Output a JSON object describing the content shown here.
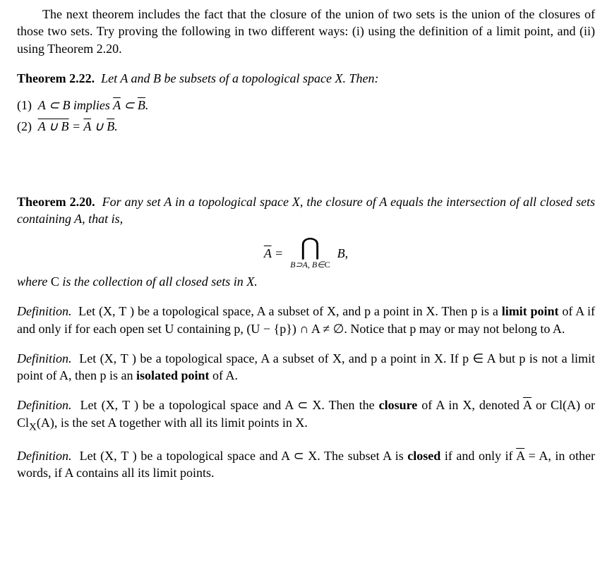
{
  "intro": "The next theorem includes the fact that the closure of the union of two sets is the union of the closures of those two sets. Try proving the following in two different ways: (i) using the definition of a limit point, and (ii) using Theorem 2.20.",
  "thm222": {
    "label": "Theorem 2.22.",
    "statement_prefix": "Let A and B be subsets of a topological space X. Then:",
    "item1_num": "(1)",
    "item1_a": "A ⊂ B implies ",
    "item1_b": "A",
    "item1_c": " ⊂ ",
    "item1_d": "B",
    "item1_e": ".",
    "item2_num": "(2)",
    "item2_a": "A ∪ B",
    "item2_b": " = ",
    "item2_c": "A",
    "item2_d": " ∪ ",
    "item2_e": "B",
    "item2_f": "."
  },
  "thm220": {
    "label": "Theorem 2.20.",
    "statement": "For any set A in a topological space X, the closure of A equals the intersection of all closed sets containing A, that is,",
    "eq_lhs": "A",
    "eq_eq": " = ",
    "eq_op": "⋂",
    "eq_sub_a": "B⊃A, B∈",
    "eq_sub_c": "C",
    "eq_rhs": "B,",
    "where_a": "where ",
    "where_c": "C",
    "where_b": " is the collection of all closed sets in X."
  },
  "def1": {
    "label": "Definition.",
    "text_a": "Let (X, ",
    "text_t": "T",
    "text_b": " ) be a topological space, A a subset of X, and p a point in X. Then p is a ",
    "bold": "limit point",
    "text_c": " of A if and only if for each open set U containing p, (U − {p}) ∩ A ≠ ∅. Notice that p may or may not belong to A."
  },
  "def2": {
    "label": "Definition.",
    "text_a": "Let (X, ",
    "text_t": "T",
    "text_b": " ) be a topological space, A a subset of X, and p a point in X. If p ∈ A but p is not a limit point of A, then p is an ",
    "bold": "isolated point",
    "text_c": " of A."
  },
  "def3": {
    "label": "Definition.",
    "text_a": "Let (X, ",
    "text_t": "T",
    "text_b": " ) be a topological space and A ⊂ X. Then the ",
    "bold": "closure",
    "text_c": " of A in X, denoted ",
    "abar": "A",
    "text_d": " or Cl(A) or Cl",
    "sub": "X",
    "text_e": "(A), is the set A together with all its limit points in X."
  },
  "def4": {
    "label": "Definition.",
    "text_a": "Let (X, ",
    "text_t": "T",
    "text_b": " ) be a topological space and A ⊂ X. The subset A is ",
    "bold": "closed",
    "text_c": " if and only if ",
    "abar": "A",
    "text_d": " = A, in other words, if A contains all its limit points."
  }
}
